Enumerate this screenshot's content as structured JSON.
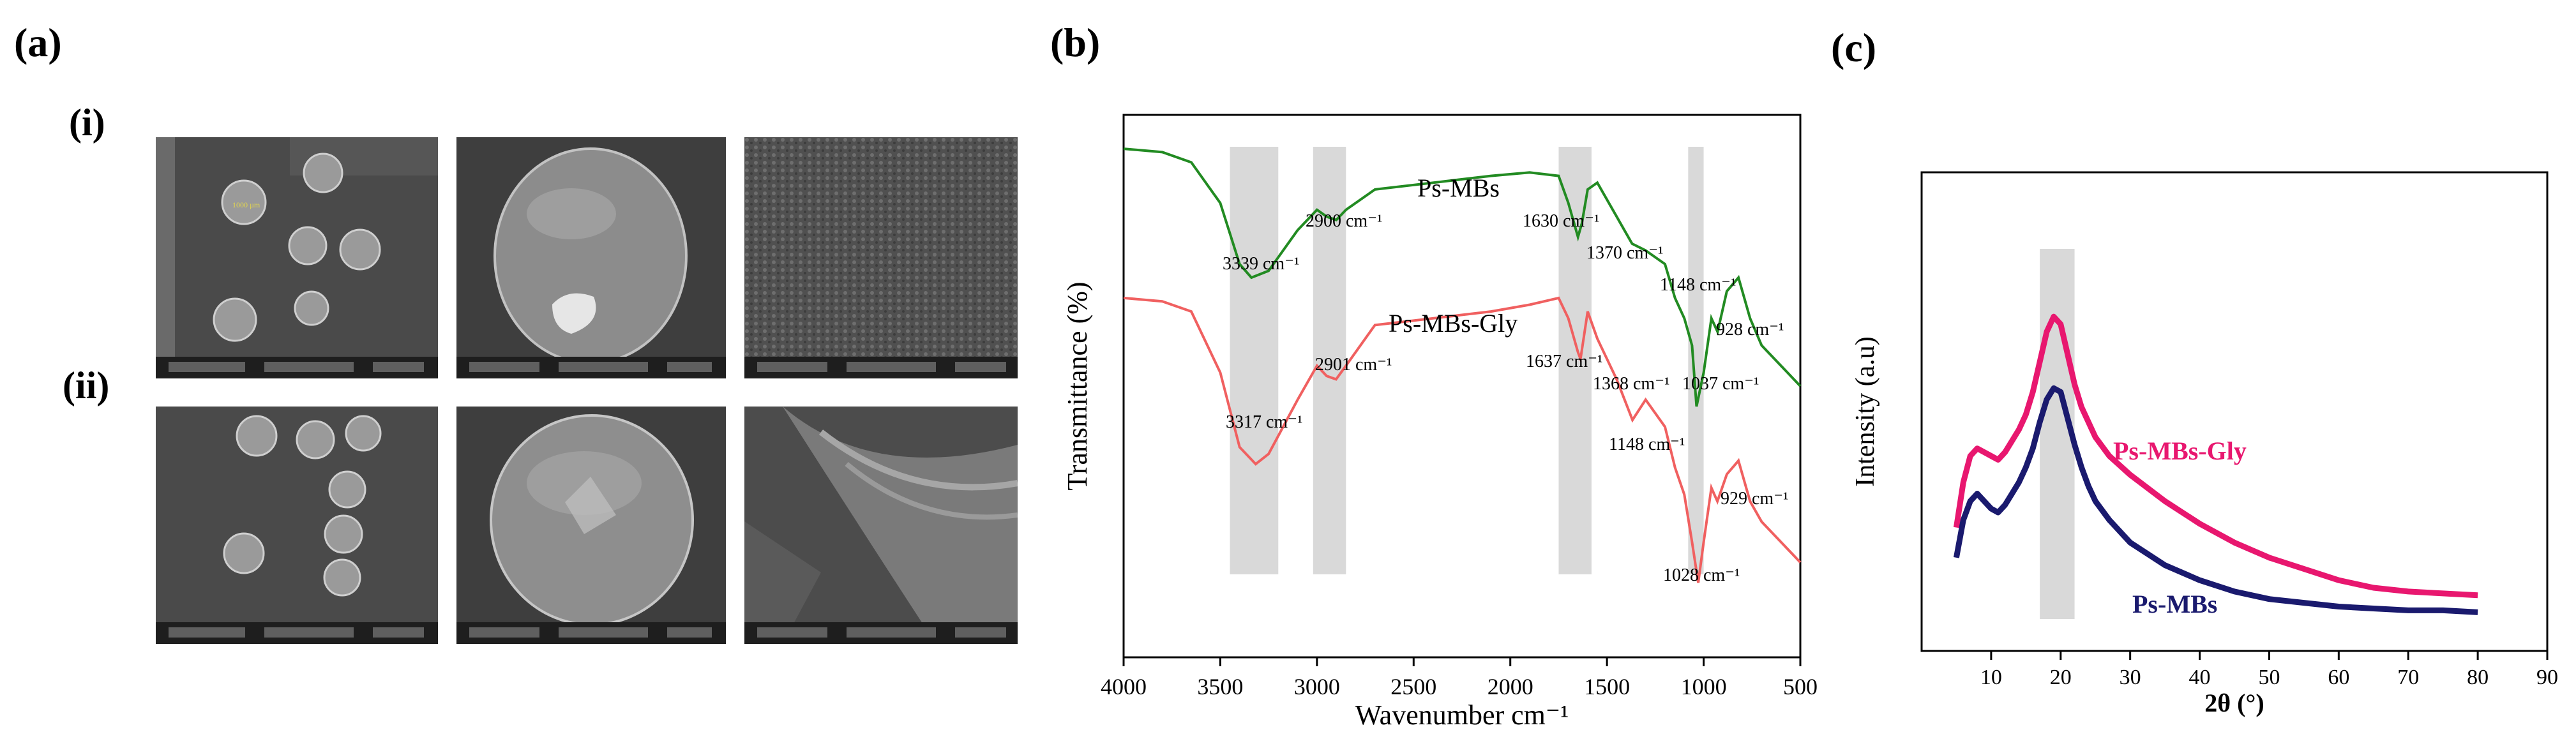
{
  "figure": {
    "panel_a": {
      "label": "(a)",
      "row_i": "(i)",
      "row_ii": "(ii)"
    },
    "panel_b": {
      "label": "(b)"
    },
    "panel_c": {
      "label": "(c)"
    }
  },
  "chart_data": [
    {
      "type": "line",
      "panel": "(b)",
      "xlabel": "Wavenumber cm⁻¹",
      "ylabel": "Transmittance (%)",
      "xlim": [
        4000,
        500
      ],
      "xticks": [
        4000,
        3500,
        3000,
        2500,
        2000,
        1500,
        1000,
        500
      ],
      "shaded_bands": [
        [
          3450,
          3200
        ],
        [
          3020,
          2850
        ],
        [
          1750,
          1580
        ],
        [
          1080,
          1000
        ]
      ],
      "series": [
        {
          "name": "Ps-MBs",
          "color": "#228b22",
          "x": [
            4000,
            3800,
            3650,
            3500,
            3400,
            3339,
            3250,
            3100,
            3000,
            2950,
            2900,
            2850,
            2700,
            2400,
            2100,
            1900,
            1750,
            1700,
            1650,
            1630,
            1600,
            1550,
            1450,
            1370,
            1300,
            1200,
            1148,
            1100,
            1060,
            1037,
            1000,
            960,
            928,
            880,
            820,
            760,
            700,
            600,
            500
          ],
          "y": [
            80,
            79.5,
            78,
            72,
            63,
            61,
            62,
            68,
            71,
            70,
            69.5,
            71,
            74,
            75,
            76,
            76.5,
            76,
            72,
            67,
            69,
            74,
            75,
            70,
            66,
            65,
            63,
            58,
            55,
            51,
            42,
            47,
            55,
            53,
            59,
            61,
            55,
            51,
            48,
            45
          ]
        },
        {
          "name": "Ps-MBs-Gly",
          "color": "#f06060",
          "x": [
            4000,
            3800,
            3650,
            3500,
            3400,
            3317,
            3250,
            3100,
            3000,
            2950,
            2901,
            2850,
            2700,
            2400,
            2100,
            1900,
            1750,
            1700,
            1650,
            1637,
            1600,
            1550,
            1450,
            1368,
            1300,
            1200,
            1148,
            1100,
            1060,
            1028,
            1000,
            960,
            929,
            880,
            820,
            760,
            700,
            600,
            500
          ],
          "y": [
            58,
            57.5,
            56,
            47,
            36,
            33.5,
            35,
            43,
            48,
            46.5,
            46,
            48,
            54,
            55,
            56,
            57,
            58,
            55,
            50,
            49,
            56,
            52,
            46,
            40,
            43,
            39,
            33,
            29,
            22,
            16,
            22,
            30,
            28,
            32,
            34,
            28,
            25,
            22,
            19
          ]
        }
      ],
      "annotations": {
        "ps_mbs": [
          "3339 cm⁻¹",
          "2900 cm⁻¹",
          "1630 cm⁻¹",
          "1370 cm⁻¹",
          "1148 cm⁻¹",
          "928 cm⁻¹",
          "1037 cm⁻¹"
        ],
        "ps_mbs_gly": [
          "3317 cm⁻¹",
          "2901 cm⁻¹",
          "1637 cm⁻¹",
          "1368 cm⁻¹",
          "1148 cm⁻¹",
          "929 cm⁻¹",
          "1028 cm⁻¹"
        ]
      },
      "legend_labels": {
        "ps_mbs": "Ps-MBs",
        "ps_mbs_gly": "Ps-MBs-Gly"
      }
    },
    {
      "type": "line",
      "panel": "(c)",
      "xlabel": "2θ (°)",
      "ylabel": "Intensity (a.u)",
      "xlim": [
        0,
        90
      ],
      "xticks": [
        10,
        20,
        30,
        40,
        50,
        60,
        70,
        80,
        90
      ],
      "shaded_band": [
        17,
        22
      ],
      "series": [
        {
          "name": "Ps-MBs-Gly",
          "color": "#e8176f",
          "x": [
            5,
            6,
            7,
            8,
            9,
            10,
            11,
            12,
            13,
            14,
            15,
            16,
            17,
            18,
            19,
            20,
            21,
            22,
            23,
            24,
            25,
            27,
            30,
            35,
            40,
            45,
            50,
            55,
            60,
            65,
            70,
            75,
            80
          ],
          "y": [
            0.26,
            0.38,
            0.45,
            0.47,
            0.46,
            0.45,
            0.44,
            0.46,
            0.49,
            0.52,
            0.56,
            0.62,
            0.7,
            0.78,
            0.82,
            0.8,
            0.72,
            0.64,
            0.58,
            0.54,
            0.5,
            0.45,
            0.4,
            0.33,
            0.27,
            0.22,
            0.18,
            0.15,
            0.12,
            0.1,
            0.09,
            0.085,
            0.08
          ]
        },
        {
          "name": "Ps-MBs",
          "color": "#1a1a6e",
          "x": [
            5,
            6,
            7,
            8,
            9,
            10,
            11,
            12,
            13,
            14,
            15,
            16,
            17,
            18,
            19,
            20,
            21,
            22,
            23,
            24,
            25,
            27,
            30,
            35,
            40,
            45,
            50,
            55,
            60,
            65,
            70,
            75,
            80
          ],
          "y": [
            0.18,
            0.28,
            0.33,
            0.35,
            0.33,
            0.31,
            0.3,
            0.32,
            0.35,
            0.38,
            0.42,
            0.47,
            0.54,
            0.6,
            0.63,
            0.62,
            0.55,
            0.48,
            0.42,
            0.37,
            0.33,
            0.28,
            0.22,
            0.16,
            0.12,
            0.09,
            0.07,
            0.06,
            0.05,
            0.045,
            0.04,
            0.04,
            0.035
          ]
        }
      ],
      "legend_labels": {
        "ps_mbs_gly": "Ps-MBs-Gly",
        "ps_mbs": "Ps-MBs"
      }
    }
  ]
}
